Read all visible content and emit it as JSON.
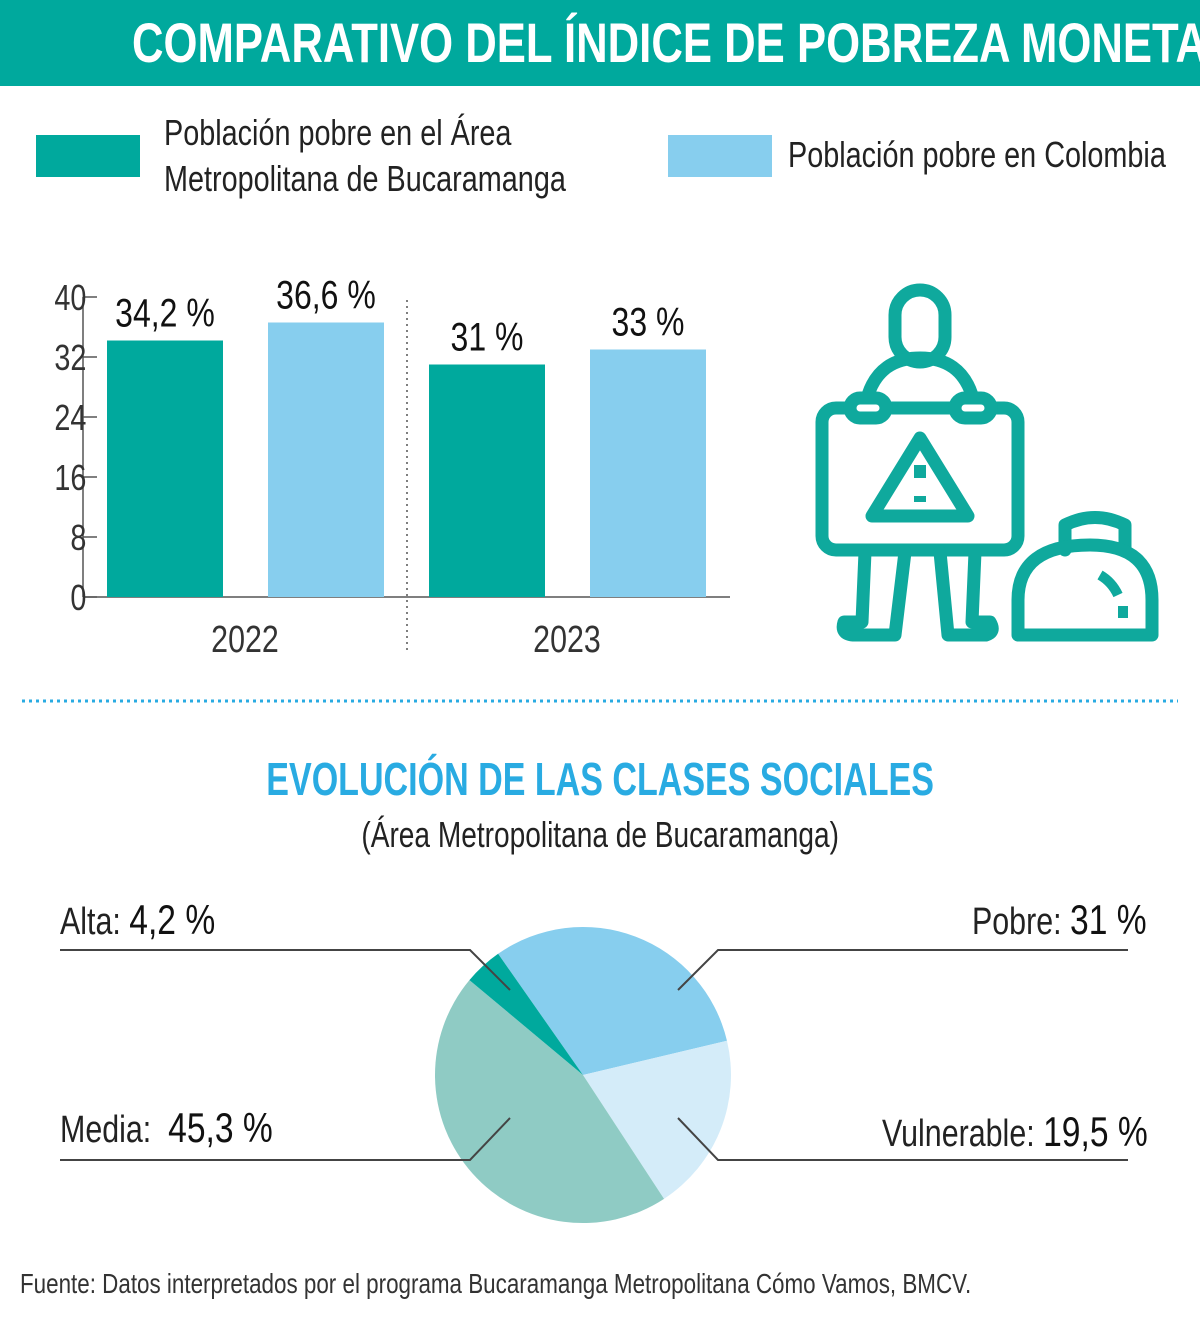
{
  "title": "COMPARATIVO DEL ÍNDICE DE POBREZA MONETARIA",
  "colors": {
    "teal": "#00a99d",
    "light_blue": "#87ceee",
    "media": "#8fcbc4",
    "vulnerable": "#d4ecf9",
    "title_blue": "#29abe2"
  },
  "icon": "person-holding-warning-sign-with-bag-icon",
  "chart_data": [
    {
      "type": "bar",
      "categories": [
        "2022",
        "2023"
      ],
      "series": [
        {
          "name": "Población pobre en el Área Metropolitana de Bucaramanga",
          "values": [
            34.2,
            31
          ],
          "labels": [
            "34,2 %",
            "31 %"
          ],
          "color": "#00a99d"
        },
        {
          "name": "Población pobre en Colombia",
          "values": [
            36.6,
            33
          ],
          "labels": [
            "36,6 %",
            "33 %"
          ],
          "color": "#87ceee"
        }
      ],
      "legend_line1": "Población pobre en el Área",
      "legend_line2": "Metropolitana de Bucaramanga",
      "legend2": "Población pobre en Colombia",
      "yticks": [
        "0",
        "8",
        "16",
        "24",
        "32",
        "40"
      ],
      "ylim": [
        0,
        40
      ],
      "grid": false,
      "legend_placement": "top"
    },
    {
      "type": "pie",
      "title": "EVOLUCIÓN DE LAS CLASES SOCIALES",
      "subtitle": "(Área Metropolitana de Bucaramanga)",
      "slices": [
        {
          "name": "Pobre:",
          "value": 31,
          "label": "31 %",
          "color": "#87ceee"
        },
        {
          "name": "Vulnerable:",
          "value": 19.5,
          "label": "19,5 %",
          "color": "#d4ecf9"
        },
        {
          "name": "Media:",
          "value": 45.3,
          "label": "45,3 %",
          "color": "#8fcbc4"
        },
        {
          "name": "Alta:",
          "value": 4.2,
          "label": "4,2 %",
          "color": "#00a99d"
        }
      ]
    }
  ],
  "source": "Fuente: Datos interpretados por el programa Bucaramanga Metropolitana Cómo Vamos, BMCV."
}
